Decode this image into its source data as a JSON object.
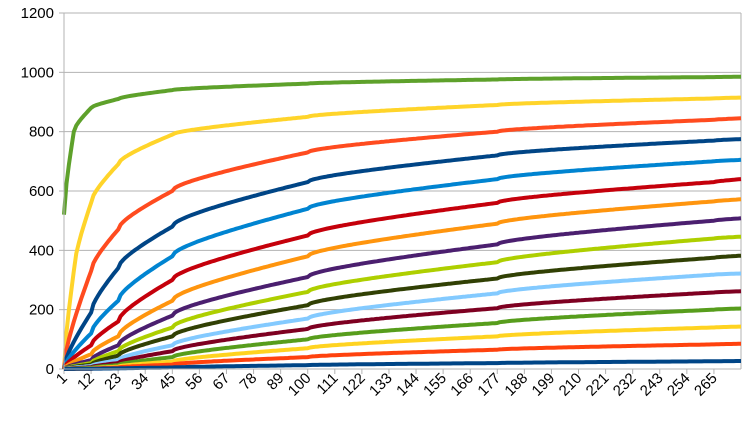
{
  "chart_data": {
    "type": "line",
    "title": "",
    "xlabel": "",
    "ylabel": "",
    "ylim": [
      0,
      1200
    ],
    "yticks": [
      0,
      200,
      400,
      600,
      800,
      1000,
      1200
    ],
    "xlim": [
      1,
      276
    ],
    "xticks": [
      1,
      12,
      23,
      34,
      45,
      56,
      67,
      78,
      89,
      100,
      111,
      122,
      133,
      144,
      155,
      166,
      177,
      188,
      199,
      210,
      221,
      232,
      243,
      254,
      265
    ],
    "grid": "horizontal",
    "legend": "none",
    "series": [
      {
        "color": "#5ea12b",
        "values_at_x": {
          "1": 520,
          "5": 800,
          "12": 880,
          "23": 910,
          "45": 940,
          "100": 962,
          "177": 976,
          "265": 984,
          "276": 985
        }
      },
      {
        "color": "#ffd42a",
        "values_at_x": {
          "1": 0,
          "5": 330,
          "12": 560,
          "23": 690,
          "45": 790,
          "100": 850,
          "177": 890,
          "265": 912,
          "276": 915
        }
      },
      {
        "color": "#ff4b1f",
        "values_at_x": {
          "1": 0,
          "12": 330,
          "23": 470,
          "45": 600,
          "100": 730,
          "177": 800,
          "265": 840,
          "276": 845
        }
      },
      {
        "color": "#004586",
        "values_at_x": {
          "1": 0,
          "12": 190,
          "23": 340,
          "45": 480,
          "100": 630,
          "177": 720,
          "265": 770,
          "276": 775
        }
      },
      {
        "color": "#0084d1",
        "values_at_x": {
          "1": 0,
          "12": 120,
          "23": 230,
          "45": 380,
          "100": 540,
          "177": 640,
          "265": 700,
          "276": 705
        }
      },
      {
        "color": "#c5000b",
        "values_at_x": {
          "1": 0,
          "12": 80,
          "23": 160,
          "45": 300,
          "100": 450,
          "177": 560,
          "265": 630,
          "276": 640
        }
      },
      {
        "color": "#ff950e",
        "values_at_x": {
          "1": 0,
          "12": 50,
          "23": 110,
          "45": 230,
          "100": 380,
          "177": 490,
          "265": 565,
          "276": 572
        }
      },
      {
        "color": "#4b1f6f",
        "values_at_x": {
          "1": 0,
          "12": 30,
          "23": 80,
          "45": 180,
          "100": 310,
          "177": 420,
          "265": 500,
          "276": 508
        }
      },
      {
        "color": "#aecf00",
        "values_at_x": {
          "1": 0,
          "12": 20,
          "23": 60,
          "45": 140,
          "100": 260,
          "177": 360,
          "265": 440,
          "276": 446
        }
      },
      {
        "color": "#314004",
        "values_at_x": {
          "1": 0,
          "12": 15,
          "23": 45,
          "45": 110,
          "100": 215,
          "177": 305,
          "265": 375,
          "276": 382
        }
      },
      {
        "color": "#83caff",
        "values_at_x": {
          "1": 0,
          "12": 10,
          "23": 30,
          "45": 80,
          "100": 170,
          "177": 255,
          "265": 318,
          "276": 322
        }
      },
      {
        "color": "#7e0021",
        "values_at_x": {
          "1": 0,
          "12": 6,
          "23": 20,
          "45": 60,
          "100": 135,
          "177": 205,
          "265": 258,
          "276": 262
        }
      },
      {
        "color": "#579d1c",
        "values_at_x": {
          "1": 0,
          "12": 4,
          "23": 13,
          "45": 40,
          "100": 100,
          "177": 155,
          "265": 200,
          "276": 204
        }
      },
      {
        "color": "#ffd320",
        "values_at_x": {
          "1": 0,
          "12": 2,
          "23": 8,
          "45": 25,
          "100": 70,
          "177": 110,
          "265": 140,
          "276": 143
        }
      },
      {
        "color": "#ff420e",
        "values_at_x": {
          "1": 0,
          "12": 1,
          "23": 5,
          "45": 15,
          "100": 40,
          "177": 65,
          "265": 83,
          "276": 85
        }
      },
      {
        "color": "#004586",
        "values_at_x": {
          "1": 0,
          "12": 1,
          "23": 2,
          "45": 5,
          "100": 13,
          "177": 20,
          "265": 26,
          "276": 27
        }
      }
    ]
  }
}
